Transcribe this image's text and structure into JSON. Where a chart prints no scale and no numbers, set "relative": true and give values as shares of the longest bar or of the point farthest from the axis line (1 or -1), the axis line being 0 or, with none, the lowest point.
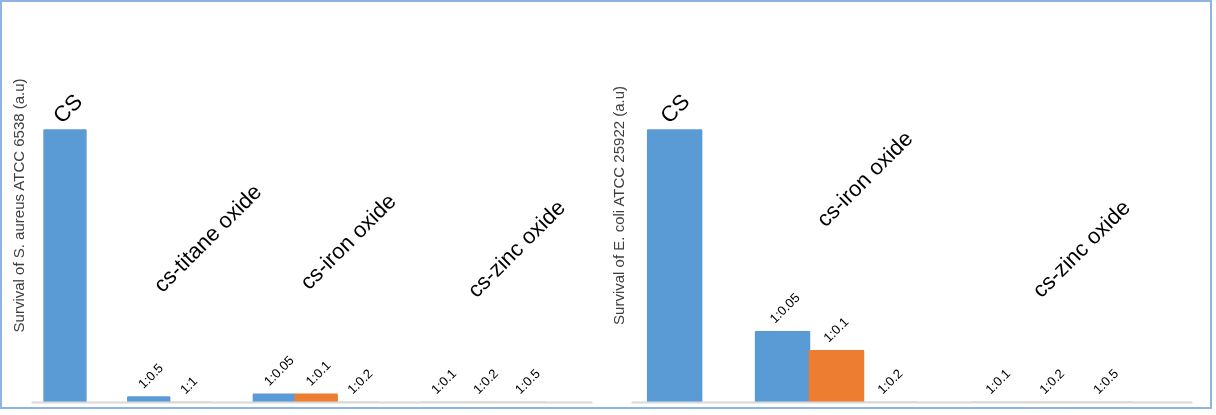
{
  "chart_data": [
    {
      "type": "bar",
      "relative": true,
      "ylabel": "Survival of S. aureus ATCC 6538 (a.u)",
      "grid": false,
      "legend": false,
      "categories": [
        "CS",
        null,
        "1:0.5",
        "1:1",
        null,
        "1:0.05",
        "1:0.1",
        "1:0.2",
        null,
        "1:0.1",
        "1:0.2",
        "1:0.5"
      ],
      "values": [
        1,
        null,
        0.02,
        0,
        null,
        0.03,
        0.03,
        0,
        null,
        0,
        0,
        0
      ],
      "colors": [
        "#5b9bd5",
        null,
        "#5b9bd5",
        "#ed7d31",
        null,
        "#5b9bd5",
        "#ed7d31",
        "#8c8c8c",
        null,
        "#5b9bd5",
        "#ed7d31",
        "#8c8c8c"
      ],
      "annotations": [
        "cs-titane oxide",
        "cs-iron oxide",
        "cs-zinc oxide"
      ]
    },
    {
      "type": "bar",
      "relative": true,
      "ylabel": "Survival of E. coli ATCC 25922 (a.u)",
      "grid": false,
      "legend": false,
      "categories": [
        "CS",
        null,
        "1:0.05",
        "1:0.1",
        "1:0.2",
        null,
        "1:0.1",
        "1:0.2",
        "1:0.5"
      ],
      "values": [
        1,
        null,
        0.26,
        0.19,
        0,
        null,
        0,
        0,
        0
      ],
      "colors": [
        "#5b9bd5",
        null,
        "#5b9bd5",
        "#ed7d31",
        "#8c8c8c",
        null,
        "#5b9bd5",
        "#ed7d31",
        "#8c8c8c"
      ],
      "annotations": [
        "cs-iron oxide",
        "cs-zinc oxide"
      ]
    }
  ]
}
